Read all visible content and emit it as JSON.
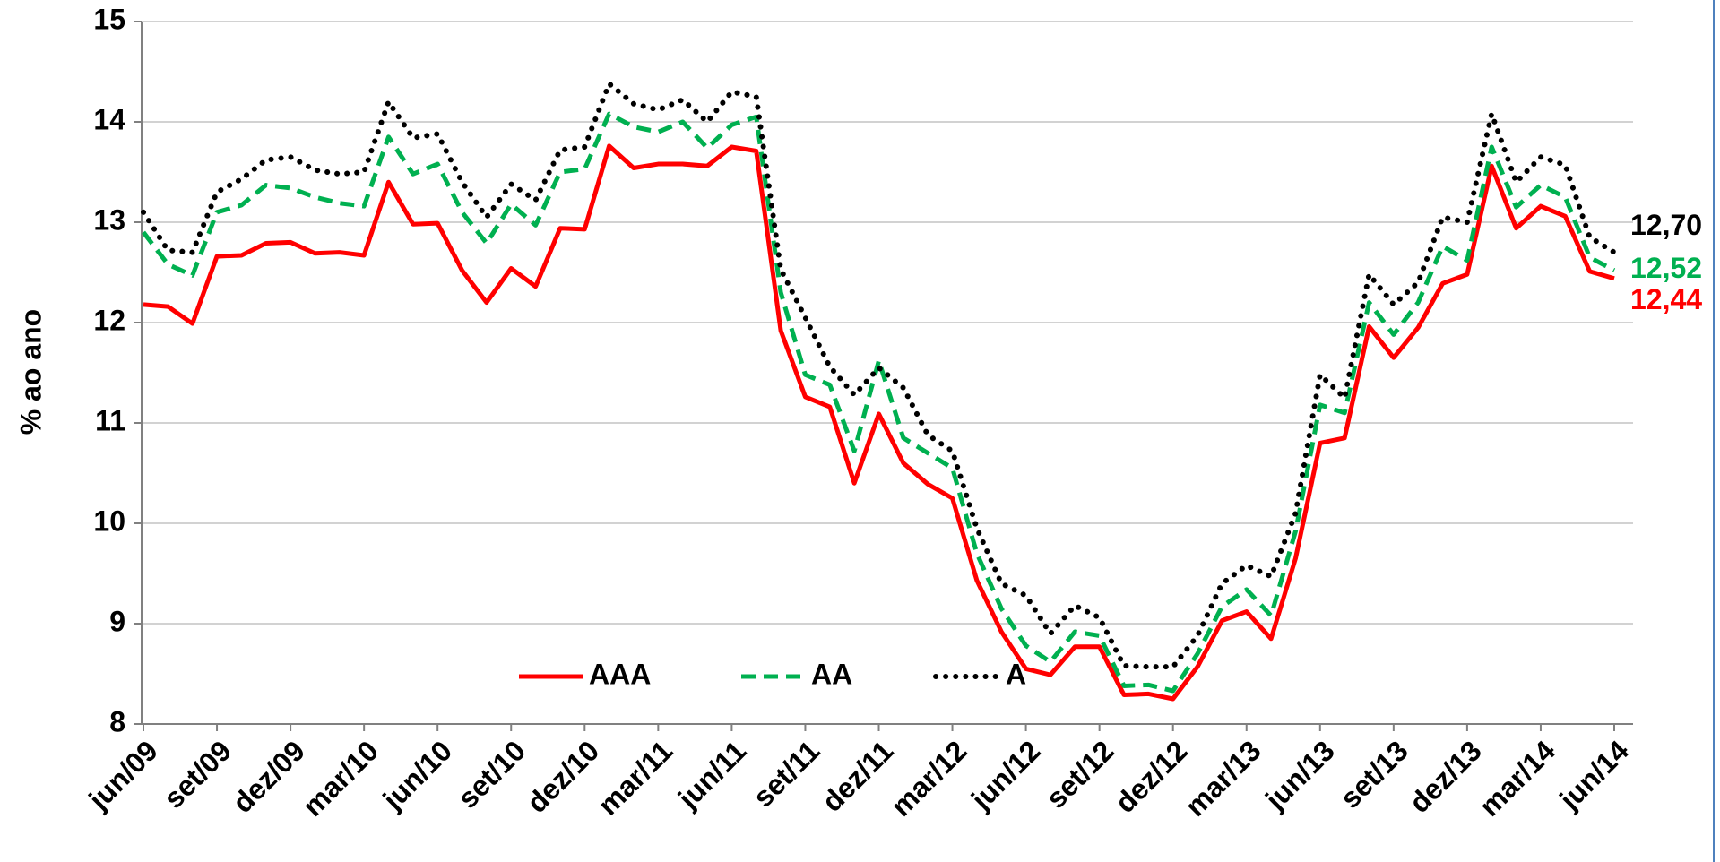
{
  "chart_data": {
    "type": "line",
    "y_label": "% ao ano",
    "categories": [
      "jun/09",
      null,
      null,
      "set/09",
      null,
      null,
      "dez/09",
      null,
      null,
      "mar/10",
      null,
      null,
      "jun/10",
      null,
      null,
      "set/10",
      null,
      null,
      "dez/10",
      null,
      null,
      "mar/11",
      null,
      null,
      "jun/11",
      null,
      null,
      "set/11",
      null,
      null,
      "dez/11",
      null,
      null,
      "mar/12",
      null,
      null,
      "jun/12",
      null,
      null,
      "set/12",
      null,
      null,
      "dez/12",
      null,
      null,
      "mar/13",
      null,
      null,
      "jun/13",
      null,
      null,
      "set/13",
      null,
      null,
      "dez/13",
      null,
      null,
      "mar/14",
      null,
      null,
      "jun/14"
    ],
    "series": [
      {
        "name": "AAA",
        "color": "#ff0000",
        "style": "solid",
        "values": [
          12.18,
          12.16,
          11.99,
          12.66,
          12.67,
          12.79,
          12.8,
          12.69,
          12.7,
          12.67,
          13.4,
          12.98,
          12.99,
          12.52,
          12.2,
          12.54,
          12.36,
          12.94,
          12.93,
          13.76,
          13.54,
          13.58,
          13.58,
          13.56,
          13.75,
          13.71,
          11.92,
          11.26,
          11.16,
          10.4,
          11.09,
          10.6,
          10.39,
          10.25,
          9.43,
          8.92,
          8.55,
          8.49,
          8.77,
          8.77,
          8.29,
          8.3,
          8.25,
          8.57,
          9.03,
          9.12,
          8.85,
          9.65,
          10.8,
          10.85,
          11.96,
          11.65,
          11.95,
          12.39,
          12.48,
          13.56,
          12.94,
          13.16,
          13.06,
          12.51,
          12.44
        ],
        "value_labels": [
          null,
          null,
          null,
          null,
          null,
          null,
          null,
          null,
          null,
          null,
          null,
          null,
          null,
          null,
          null,
          null,
          null,
          null,
          null,
          null,
          null,
          null,
          null,
          null,
          null,
          null,
          null,
          null,
          null,
          null,
          null,
          null,
          null,
          null,
          null,
          null,
          null,
          null,
          null,
          null,
          null,
          null,
          null,
          null,
          null,
          null,
          null,
          null,
          null,
          null,
          null,
          null,
          null,
          null,
          null,
          null,
          null,
          null,
          null,
          null,
          "12,44"
        ]
      },
      {
        "name": "AA",
        "color": "#00b050",
        "style": "dashed",
        "values": [
          12.9,
          12.58,
          12.47,
          13.1,
          13.17,
          13.37,
          13.34,
          13.25,
          13.19,
          13.16,
          13.85,
          13.48,
          13.58,
          13.1,
          12.79,
          13.18,
          12.97,
          13.5,
          13.53,
          14.08,
          13.95,
          13.9,
          14.0,
          13.74,
          13.97,
          14.05,
          12.3,
          11.48,
          11.38,
          10.72,
          11.62,
          10.85,
          10.7,
          10.55,
          9.7,
          9.15,
          8.78,
          8.62,
          8.92,
          8.88,
          8.38,
          8.39,
          8.33,
          8.7,
          9.17,
          9.34,
          9.08,
          9.92,
          11.18,
          11.1,
          12.2,
          11.88,
          12.2,
          12.76,
          12.62,
          13.75,
          13.15,
          13.37,
          13.25,
          12.65,
          12.52
        ],
        "value_labels": [
          null,
          null,
          null,
          null,
          null,
          null,
          null,
          null,
          null,
          null,
          null,
          null,
          null,
          null,
          null,
          null,
          null,
          null,
          null,
          null,
          null,
          null,
          null,
          null,
          null,
          null,
          null,
          null,
          null,
          null,
          null,
          null,
          null,
          null,
          null,
          null,
          null,
          null,
          null,
          null,
          null,
          null,
          null,
          null,
          null,
          null,
          null,
          null,
          null,
          null,
          null,
          null,
          null,
          null,
          null,
          null,
          null,
          null,
          null,
          null,
          "12,52"
        ]
      },
      {
        "name": "A",
        "color": "#000000",
        "style": "dotted",
        "values": [
          13.1,
          12.72,
          12.7,
          13.3,
          13.43,
          13.62,
          13.65,
          13.52,
          13.48,
          13.5,
          14.2,
          13.84,
          13.88,
          13.4,
          13.05,
          13.38,
          13.22,
          13.72,
          13.75,
          14.38,
          14.18,
          14.12,
          14.22,
          14.0,
          14.3,
          14.25,
          12.53,
          12.05,
          11.56,
          11.28,
          11.55,
          11.35,
          10.88,
          10.72,
          9.95,
          9.4,
          9.28,
          8.9,
          9.18,
          9.06,
          8.58,
          8.57,
          8.57,
          8.88,
          9.4,
          9.58,
          9.47,
          10.1,
          11.48,
          11.25,
          12.48,
          12.18,
          12.4,
          13.05,
          13.0,
          14.08,
          13.4,
          13.65,
          13.57,
          12.85,
          12.7
        ],
        "value_labels": [
          null,
          null,
          null,
          null,
          null,
          null,
          null,
          null,
          null,
          null,
          null,
          null,
          null,
          null,
          null,
          null,
          null,
          null,
          null,
          null,
          null,
          null,
          null,
          null,
          null,
          null,
          null,
          null,
          null,
          null,
          null,
          null,
          null,
          null,
          null,
          null,
          null,
          null,
          null,
          null,
          null,
          null,
          null,
          null,
          null,
          null,
          null,
          null,
          null,
          null,
          null,
          null,
          null,
          null,
          null,
          null,
          null,
          null,
          null,
          null,
          "12,70"
        ]
      }
    ],
    "ylim": [
      8,
      15
    ],
    "yticks": [
      8,
      9,
      10,
      11,
      12,
      13,
      14,
      15
    ],
    "grid": true,
    "legend": "bottom"
  }
}
